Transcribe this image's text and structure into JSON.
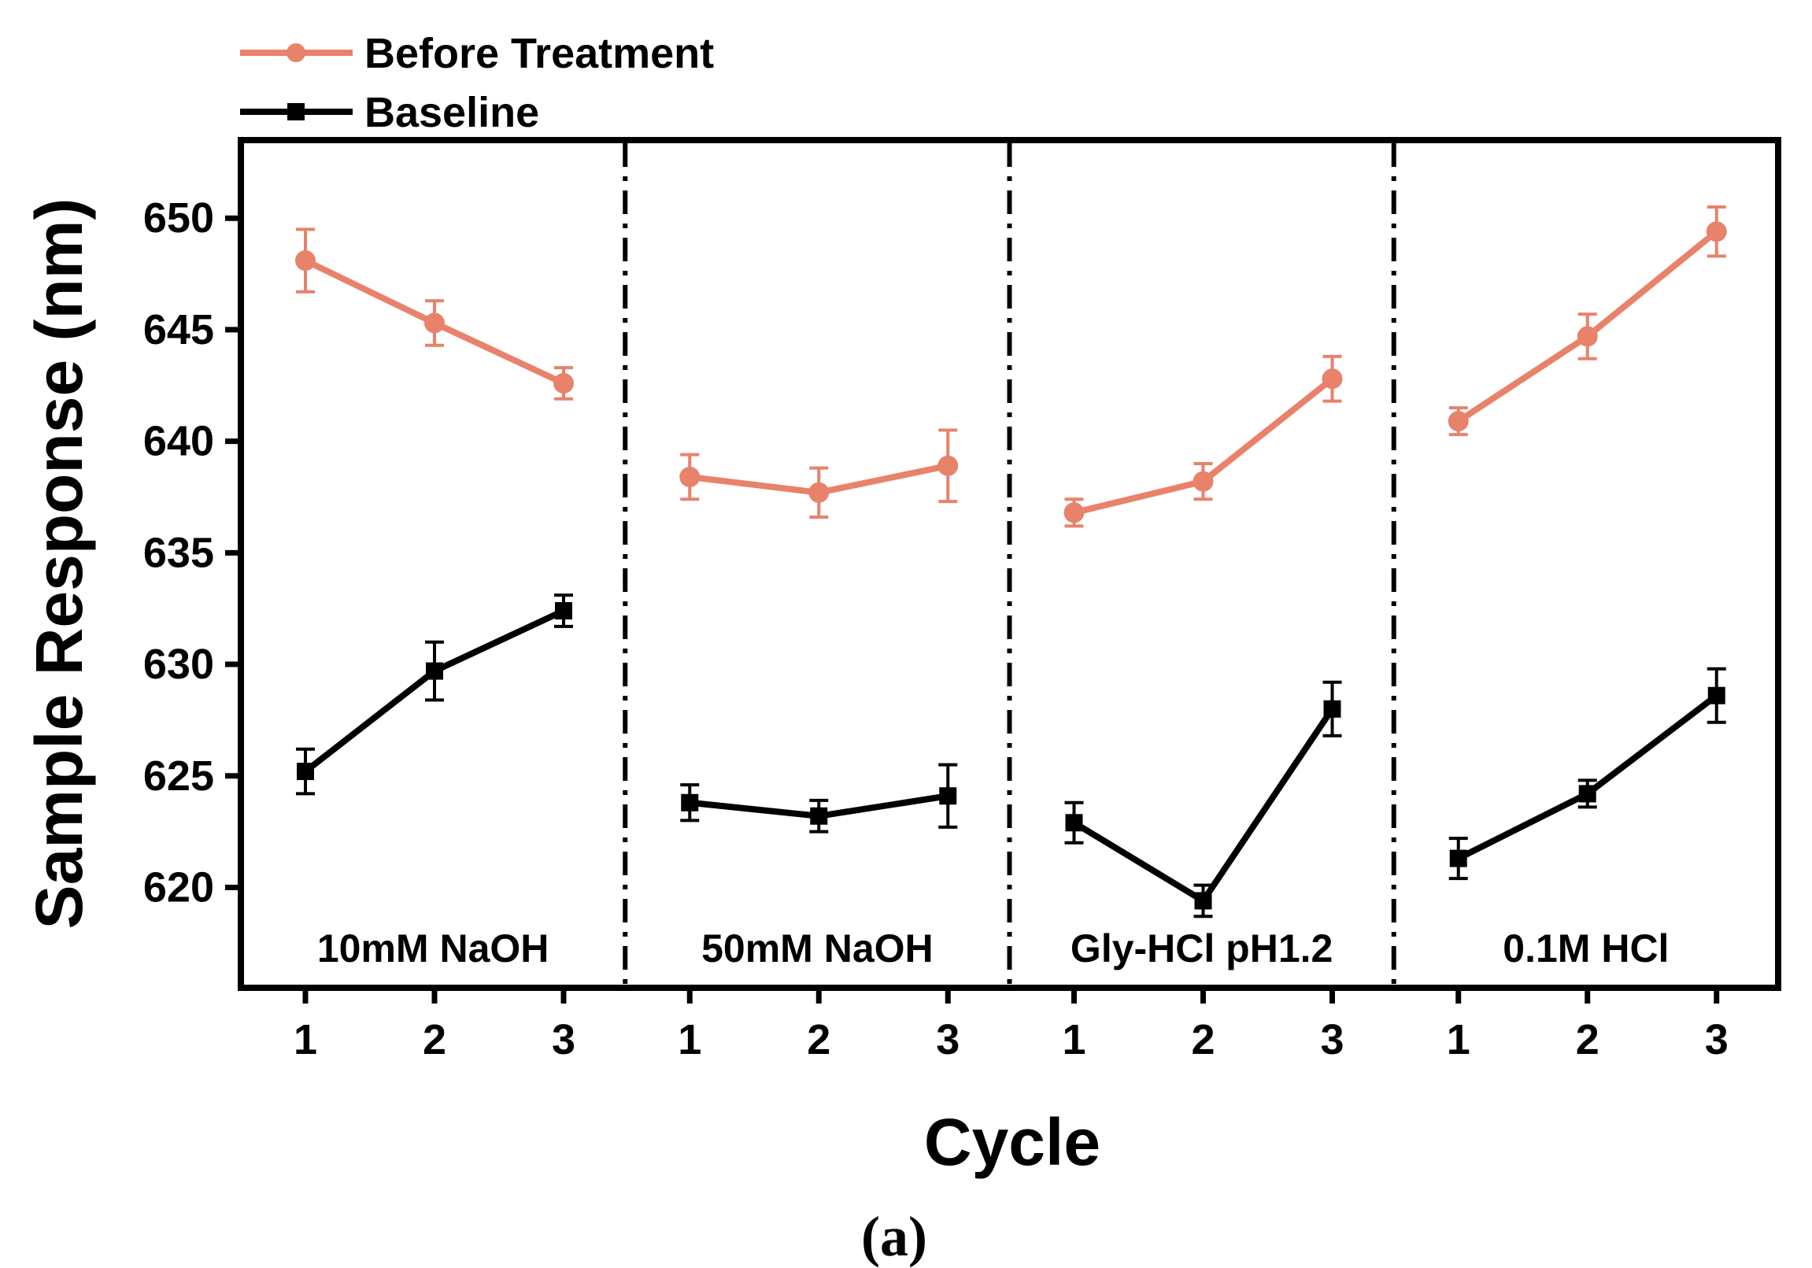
{
  "chart_data": {
    "type": "line",
    "panel_label": "(a)",
    "xlabel": "Cycle",
    "ylabel": "Sample Response (nm)",
    "ylim": [
      615.5,
      653.5
    ],
    "yticks": [
      620,
      625,
      630,
      635,
      640,
      645,
      650
    ],
    "grid": false,
    "legend_position": "top-left, above plot",
    "groups": [
      {
        "name": "10mM NaOH",
        "cycles": [
          "1",
          "2",
          "3"
        ]
      },
      {
        "name": "50mM NaOH",
        "cycles": [
          "1",
          "2",
          "3"
        ]
      },
      {
        "name": "Gly-HCl pH1.2",
        "cycles": [
          "1",
          "2",
          "3"
        ]
      },
      {
        "name": "0.1M HCl",
        "cycles": [
          "1",
          "2",
          "3"
        ]
      }
    ],
    "series": [
      {
        "name": "Before Treatment",
        "color": "#E8826A",
        "marker": "circle",
        "values": [
          [
            648.1,
            645.3,
            642.6
          ],
          [
            638.4,
            637.7,
            638.9
          ],
          [
            636.8,
            638.2,
            642.8
          ],
          [
            640.9,
            644.7,
            649.4
          ]
        ],
        "errors": [
          [
            1.4,
            1.0,
            0.7
          ],
          [
            1.0,
            1.1,
            1.6
          ],
          [
            0.6,
            0.8,
            1.0
          ],
          [
            0.6,
            1.0,
            1.1
          ]
        ]
      },
      {
        "name": "Baseline",
        "color": "#000000",
        "marker": "square",
        "values": [
          [
            625.2,
            629.7,
            632.4
          ],
          [
            623.8,
            623.2,
            624.1
          ],
          [
            622.9,
            619.4,
            628.0
          ],
          [
            621.3,
            624.2,
            628.6
          ]
        ],
        "errors": [
          [
            1.0,
            1.3,
            0.7
          ],
          [
            0.8,
            0.7,
            1.4
          ],
          [
            0.9,
            0.7,
            1.2
          ],
          [
            0.9,
            0.6,
            1.2
          ]
        ]
      }
    ]
  }
}
